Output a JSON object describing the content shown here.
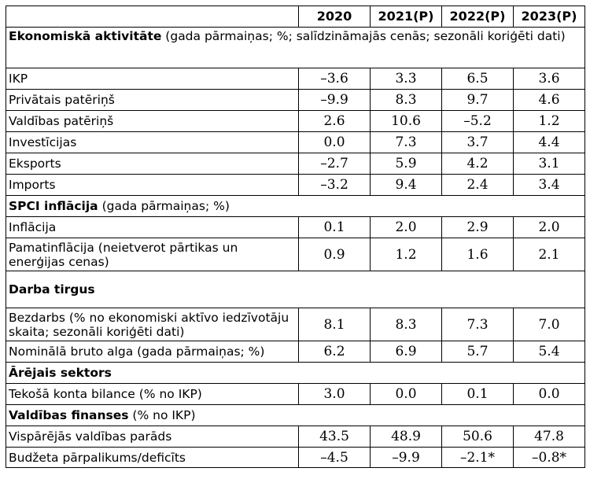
{
  "header": {
    "col_label": "",
    "years": [
      "2020",
      "2021(P)",
      "2022(P)",
      "2023(P)"
    ]
  },
  "sections": {
    "economic": {
      "title": "Ekonomiskā aktivitāte",
      "note": " (gada pārmaiņas; %; salīdzināmajās cenās; sezonāli koriģēti dati)"
    },
    "hicp": {
      "title": "SPCI inflācija",
      "note": " (gada pārmaiņas; %)"
    },
    "labour": {
      "title": "Darba tirgus"
    },
    "external": {
      "title": "Ārējais sektors"
    },
    "government": {
      "title": "Valdības finanses",
      "note": " (% no IKP)"
    }
  },
  "rows": {
    "gdp": {
      "label": "IKP",
      "values": [
        "–3.6",
        "3.3",
        "6.5",
        "3.6"
      ]
    },
    "private_consumption": {
      "label": "Privātais patēriņš",
      "values": [
        "–9.9",
        "8.3",
        "9.7",
        "4.6"
      ]
    },
    "government_consumption": {
      "label": "Valdības patēriņš",
      "values": [
        "2.6",
        "10.6",
        "–5.2",
        "1.2"
      ]
    },
    "investment": {
      "label": "Investīcijas",
      "values": [
        "0.0",
        "7.3",
        "3.7",
        "4.4"
      ]
    },
    "exports": {
      "label": "Eksports",
      "values": [
        "–2.7",
        "5.9",
        "4.2",
        "3.1"
      ]
    },
    "imports": {
      "label": "Imports",
      "values": [
        "–3.2",
        "9.4",
        "2.4",
        "3.4"
      ]
    },
    "inflation": {
      "label": "Inflācija",
      "values": [
        "0.1",
        "2.0",
        "2.9",
        "2.0"
      ]
    },
    "core_inflation": {
      "label": "Pamatinflācija (neietverot pārtikas un enerģijas cenas)",
      "values": [
        "0.9",
        "1.2",
        "1.6",
        "2.1"
      ]
    },
    "unemployment": {
      "label": "Bezdarbs (% no ekonomiski aktīvo iedzīvotāju skaita; sezonāli koriģēti dati)",
      "values": [
        "8.1",
        "8.3",
        "7.3",
        "7.0"
      ]
    },
    "wage": {
      "label": "Nominālā bruto alga (gada pārmaiņas; %)",
      "values": [
        "6.2",
        "6.9",
        "5.7",
        "5.4"
      ]
    },
    "current_account": {
      "label": "Tekošā konta bilance (% no IKP)",
      "values": [
        "3.0",
        "0.0",
        "0.1",
        "0.0"
      ]
    },
    "gov_debt": {
      "label": "Vispārējās valdības parāds",
      "values": [
        "43.5",
        "48.9",
        "50.6",
        "47.8"
      ]
    },
    "budget_balance": {
      "label": "Budžeta pārpalikums/deficīts",
      "values": [
        "–4.5",
        "–9.9",
        "–2.1*",
        "–0.8*"
      ]
    }
  }
}
